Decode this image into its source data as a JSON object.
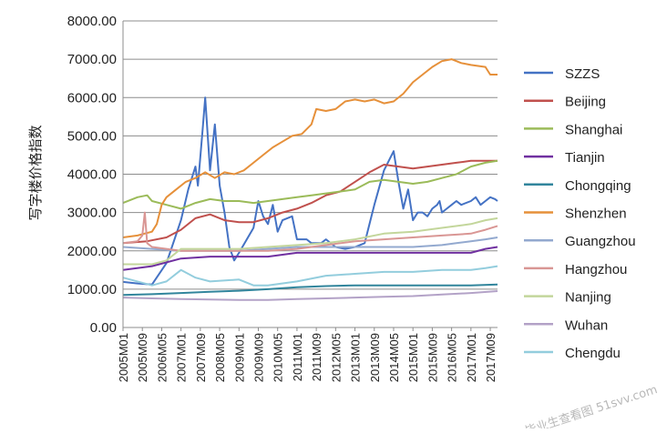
{
  "chart_data": {
    "type": "line",
    "title": "",
    "xlabel": "",
    "ylabel": "写字楼价格指数",
    "ylim": [
      0,
      8000
    ],
    "y_ticks": [
      "0.00",
      "1000.00",
      "2000.00",
      "3000.00",
      "4000.00",
      "5000.00",
      "6000.00",
      "7000.00",
      "8000.00"
    ],
    "x_ticks": [
      "2005M01",
      "2005M09",
      "2006M05",
      "2007M01",
      "2007M09",
      "2008M05",
      "2009M01",
      "2009M09",
      "2010M05",
      "2011M01",
      "2011M09",
      "2012M05",
      "2013M01",
      "2013M09",
      "2014M05",
      "2015M01",
      "2015M09",
      "2016M05",
      "2017M01",
      "2017M09"
    ],
    "x_start": "2005M01",
    "x_end": "2017M12",
    "grid": true,
    "legend_position": "right",
    "series": [
      {
        "name": "SZZS",
        "color": "#4472C4",
        "months": [
          0,
          6,
          12,
          18,
          24,
          27,
          30,
          31,
          33,
          34,
          36,
          38,
          40,
          42,
          44,
          46,
          48,
          54,
          56,
          58,
          60,
          62,
          64,
          66,
          70,
          72,
          74,
          76,
          78,
          80,
          82,
          84,
          88,
          92,
          96,
          100,
          104,
          108,
          112,
          114,
          116,
          118,
          120,
          121,
          122,
          124,
          126,
          128,
          130,
          131,
          132,
          134,
          136,
          138,
          140,
          144,
          146,
          148,
          150,
          152,
          154,
          155
        ],
        "values": [
          1190,
          1150,
          1120,
          1680,
          2800,
          3600,
          4200,
          3700,
          5200,
          6000,
          4100,
          5300,
          3700,
          3000,
          2100,
          1750,
          1950,
          2600,
          3300,
          2900,
          2700,
          3200,
          2500,
          2800,
          2900,
          2300,
          2300,
          2300,
          2200,
          2200,
          2200,
          2300,
          2100,
          2050,
          2100,
          2200,
          3200,
          4100,
          4600,
          3800,
          3100,
          3600,
          2800,
          2900,
          3000,
          3000,
          2900,
          3100,
          3200,
          3300,
          3000,
          3100,
          3200,
          3300,
          3200,
          3300,
          3400,
          3200,
          3300,
          3400,
          3350,
          3300
        ]
      },
      {
        "name": "Beijing",
        "color": "#C0504D",
        "months": [
          0,
          10,
          18,
          24,
          30,
          36,
          42,
          48,
          54,
          60,
          66,
          72,
          78,
          84,
          90,
          96,
          102,
          108,
          114,
          120,
          126,
          132,
          138,
          144,
          150,
          155
        ],
        "values": [
          2200,
          2250,
          2350,
          2550,
          2850,
          2950,
          2800,
          2750,
          2750,
          2850,
          3000,
          3100,
          3250,
          3450,
          3550,
          3800,
          4050,
          4250,
          4200,
          4150,
          4200,
          4250,
          4300,
          4350,
          4350,
          4350
        ]
      },
      {
        "name": "Shanghai",
        "color": "#9BBB59",
        "months": [
          0,
          6,
          10,
          12,
          18,
          24,
          30,
          36,
          42,
          48,
          54,
          60,
          66,
          72,
          78,
          84,
          90,
          96,
          102,
          108,
          114,
          120,
          126,
          132,
          138,
          144,
          150,
          155
        ],
        "values": [
          3250,
          3400,
          3450,
          3300,
          3200,
          3100,
          3250,
          3350,
          3300,
          3300,
          3250,
          3300,
          3350,
          3400,
          3450,
          3500,
          3550,
          3600,
          3800,
          3850,
          3800,
          3750,
          3800,
          3900,
          4000,
          4200,
          4300,
          4350
        ]
      },
      {
        "name": "Tianjin",
        "color": "#7030A0",
        "months": [
          0,
          12,
          24,
          36,
          48,
          60,
          72,
          84,
          96,
          108,
          120,
          132,
          144,
          150,
          155
        ],
        "values": [
          1500,
          1600,
          1800,
          1850,
          1850,
          1850,
          1950,
          1950,
          1950,
          1950,
          1950,
          1950,
          1950,
          2050,
          2100
        ]
      },
      {
        "name": "Chongqing",
        "color": "#31859C",
        "months": [
          0,
          12,
          24,
          36,
          48,
          60,
          72,
          84,
          96,
          108,
          120,
          132,
          144,
          155
        ],
        "values": [
          850,
          870,
          900,
          930,
          960,
          1000,
          1050,
          1080,
          1100,
          1100,
          1100,
          1100,
          1100,
          1120
        ]
      },
      {
        "name": "Shenzhen",
        "color": "#E6903A",
        "months": [
          0,
          6,
          12,
          14,
          16,
          18,
          22,
          26,
          30,
          34,
          38,
          42,
          46,
          50,
          54,
          58,
          62,
          66,
          70,
          74,
          78,
          80,
          84,
          88,
          90,
          92,
          96,
          100,
          104,
          108,
          112,
          116,
          120,
          124,
          128,
          132,
          136,
          140,
          144,
          150,
          152,
          155
        ],
        "values": [
          2350,
          2400,
          2500,
          2700,
          3200,
          3400,
          3600,
          3800,
          3900,
          4050,
          3900,
          4050,
          4000,
          4100,
          4300,
          4500,
          4700,
          4850,
          5000,
          5050,
          5300,
          5700,
          5650,
          5700,
          5800,
          5900,
          5950,
          5900,
          5950,
          5850,
          5900,
          6100,
          6400,
          6600,
          6800,
          6950,
          7000,
          6900,
          6850,
          6800,
          6600,
          6600
        ]
      },
      {
        "name": "Guangzhou",
        "color": "#93A9CF",
        "months": [
          0,
          12,
          24,
          36,
          48,
          60,
          72,
          84,
          96,
          108,
          120,
          132,
          138,
          144,
          150,
          155
        ],
        "values": [
          2100,
          2050,
          2000,
          2000,
          2000,
          2050,
          2100,
          2100,
          2100,
          2100,
          2100,
          2150,
          2200,
          2250,
          2300,
          2350
        ]
      },
      {
        "name": "Hangzhou",
        "color": "#D99694",
        "months": [
          0,
          6,
          8,
          9,
          10,
          12,
          18,
          24,
          36,
          48,
          60,
          72,
          84,
          96,
          108,
          120,
          132,
          144,
          150,
          155
        ],
        "values": [
          2200,
          2250,
          2400,
          3000,
          2200,
          2100,
          2050,
          2000,
          2000,
          2000,
          2000,
          2050,
          2150,
          2250,
          2300,
          2350,
          2400,
          2450,
          2550,
          2650
        ]
      },
      {
        "name": "Nanjing",
        "color": "#C3D69B",
        "months": [
          0,
          12,
          18,
          24,
          36,
          48,
          60,
          72,
          84,
          96,
          108,
          120,
          132,
          144,
          150,
          155
        ],
        "values": [
          1650,
          1650,
          1750,
          2050,
          2050,
          2050,
          2100,
          2150,
          2200,
          2300,
          2450,
          2500,
          2600,
          2700,
          2800,
          2850
        ]
      },
      {
        "name": "Wuhan",
        "color": "#B3A2C7",
        "months": [
          0,
          12,
          24,
          36,
          48,
          60,
          72,
          84,
          96,
          108,
          120,
          132,
          144,
          155
        ],
        "values": [
          780,
          760,
          740,
          730,
          720,
          720,
          740,
          760,
          780,
          800,
          820,
          860,
          900,
          950
        ]
      },
      {
        "name": "Chengdu",
        "color": "#93CDDD",
        "months": [
          0,
          12,
          18,
          24,
          30,
          36,
          48,
          54,
          60,
          72,
          84,
          96,
          108,
          120,
          132,
          144,
          150,
          155
        ],
        "values": [
          1300,
          1100,
          1200,
          1500,
          1300,
          1200,
          1250,
          1100,
          1100,
          1200,
          1350,
          1400,
          1450,
          1450,
          1500,
          1500,
          1550,
          1600
        ]
      }
    ]
  },
  "watermark": "毕业生查看图 51svv.com"
}
